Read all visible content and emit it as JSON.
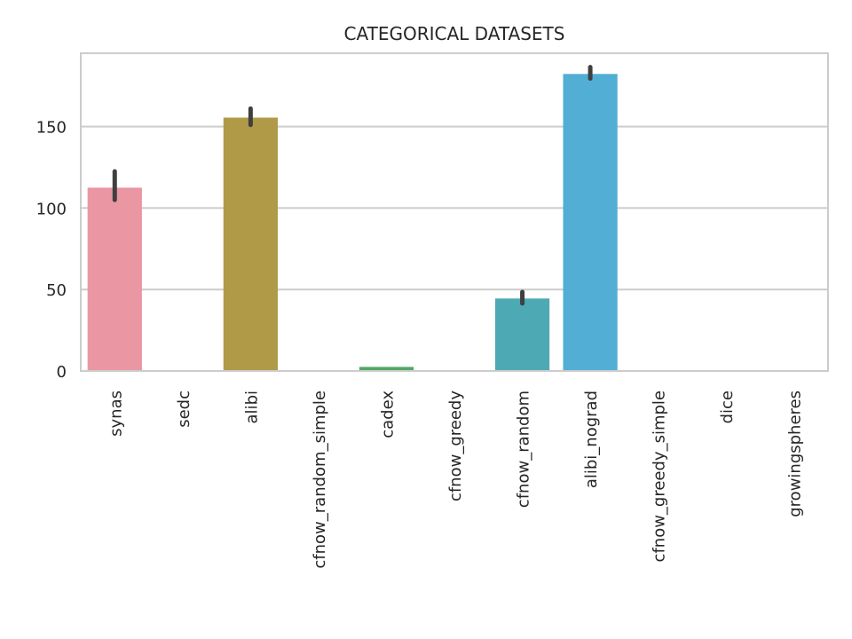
{
  "chart_data": {
    "type": "bar",
    "title": "CATEGORICAL DATASETS",
    "xlabel": "",
    "ylabel": "",
    "categories": [
      "synas",
      "sedc",
      "alibi",
      "cfnow_random_simple",
      "cadex",
      "cfnow_greedy",
      "cfnow_random",
      "alibi_nograd",
      "cfnow_greedy_simple",
      "dice",
      "growingspheres"
    ],
    "values": [
      112.5,
      0.3,
      155.5,
      0.3,
      2.5,
      0.3,
      44.5,
      182.3,
      0.3,
      0.2,
      0.3
    ],
    "error_low": [
      105,
      0.3,
      151,
      0.3,
      2.5,
      0.3,
      41.5,
      179.5,
      0.3,
      0.2,
      0.3
    ],
    "error_high": [
      122.5,
      0.3,
      161,
      0.3,
      2.5,
      0.3,
      48.5,
      186.5,
      0.3,
      0.2,
      0.3
    ],
    "colors": [
      "#ea96a3",
      "#db9c54",
      "#b19a47",
      "#94a548",
      "#4fa863",
      "#4ead90",
      "#4daab5",
      "#52aed4",
      "#9bafe5",
      "#d4a1e4",
      "#ea9ac6"
    ],
    "yticks": [
      0,
      50,
      100,
      150
    ],
    "ylim": [
      0,
      195
    ],
    "grid": true,
    "legend": "none"
  }
}
